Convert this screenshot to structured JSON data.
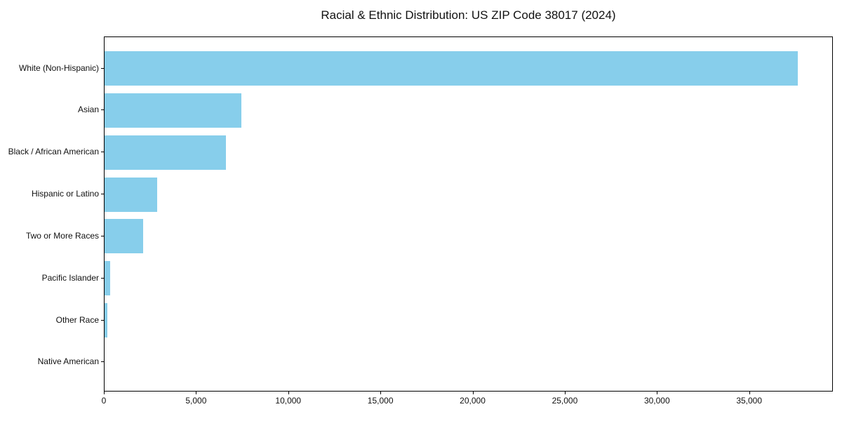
{
  "chart_data": {
    "type": "bar",
    "orientation": "horizontal",
    "title": "Racial & Ethnic Distribution: US ZIP Code 38017 (2024)",
    "categories": [
      "White (Non-Hispanic)",
      "Asian",
      "Black / African American",
      "Hispanic or Latino",
      "Two or More Races",
      "Pacific Islander",
      "Other Race",
      "Native American"
    ],
    "values": [
      37660,
      7430,
      6580,
      2860,
      2100,
      300,
      150,
      0
    ],
    "xlabel": "",
    "ylabel": "",
    "xlim": [
      0,
      39540
    ],
    "xticks": [
      0,
      5000,
      10000,
      15000,
      20000,
      25000,
      30000,
      35000
    ],
    "xtick_labels": [
      "0",
      "5,000",
      "10,000",
      "15,000",
      "20,000",
      "25,000",
      "30,000",
      "35,000"
    ],
    "bar_color": "#87CEEB",
    "grid": false,
    "legend": "none",
    "sort_order": "descending"
  }
}
